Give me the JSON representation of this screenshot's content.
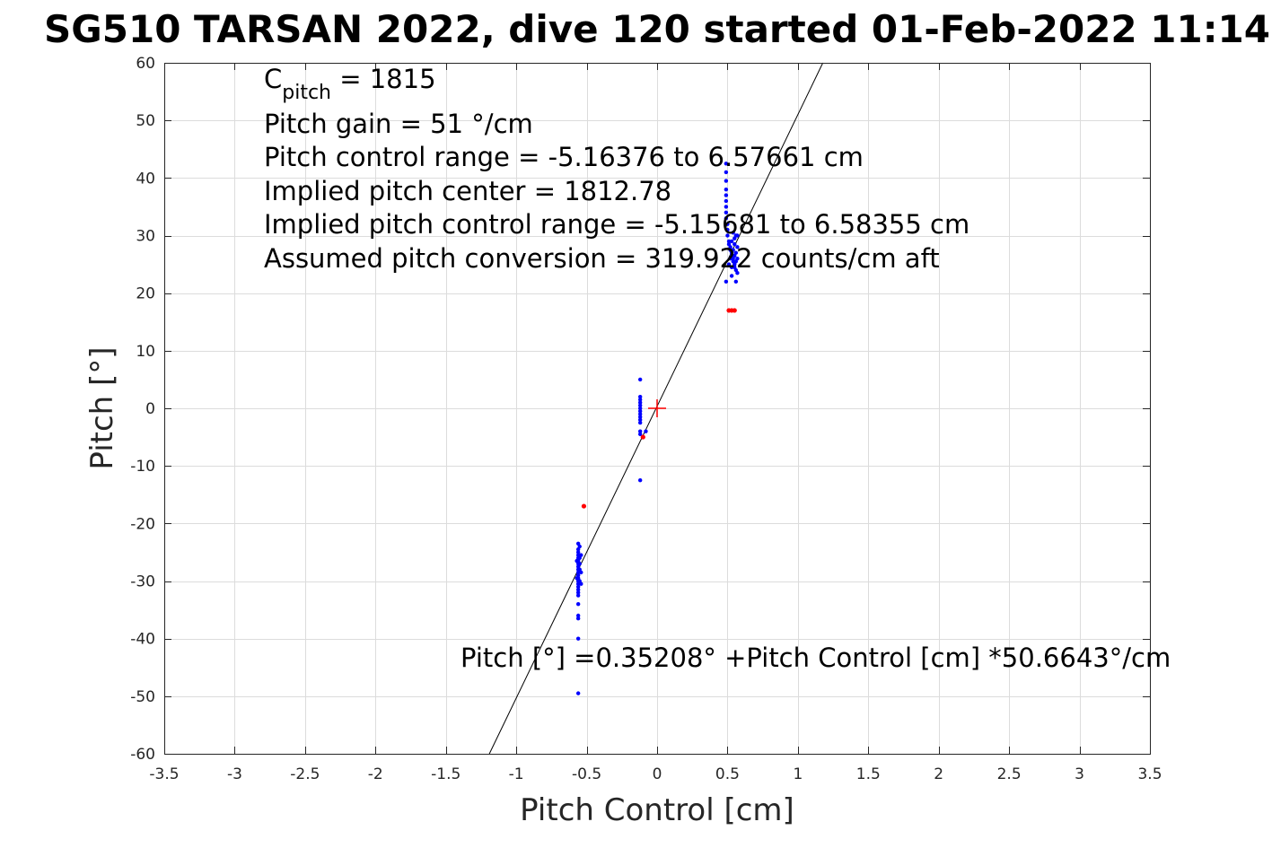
{
  "chart_data": {
    "type": "scatter",
    "title": "SG510 TARSAN 2022, dive 120 started 01-Feb-2022 11:14",
    "xlabel": "Pitch Control [cm]",
    "ylabel": "Pitch [°]",
    "xlim": [
      -3.5,
      3.5
    ],
    "ylim": [
      -60,
      60
    ],
    "xticks": [
      -3.5,
      -3,
      -2.5,
      -2,
      -1.5,
      -1,
      -0.5,
      0,
      0.5,
      1,
      1.5,
      2,
      2.5,
      3,
      3.5
    ],
    "yticks": [
      -60,
      -50,
      -40,
      -30,
      -20,
      -10,
      0,
      10,
      20,
      30,
      40,
      50,
      60
    ],
    "grid": true,
    "colors": {
      "series_used": "#0000ff",
      "series_excluded": "#ff0000",
      "fit": "#000000",
      "center_marker": "#ff0000"
    },
    "annotations": {
      "c_pitch_symbol": "C",
      "c_pitch_subscript": "pitch",
      "c_pitch_value": " = 1815",
      "lines": [
        "Pitch gain = 51 °/cm",
        "Pitch control range = -5.16376 to 6.57661 cm",
        "Implied pitch center = 1812.78",
        "Implied pitch control range = -5.15681 to 6.58355 cm",
        "Assumed pitch conversion = 319.922 counts/cm aft"
      ],
      "fit_equation": "Pitch [°] =0.35208° +Pitch Control [cm] *50.6643°/cm"
    },
    "fit": {
      "intercept": 0.35208,
      "slope": 50.6643
    },
    "center_marker": {
      "x": 0,
      "y": 0
    },
    "series": [
      {
        "style": "blue-dots",
        "points": [
          [
            0.49,
            42.5
          ],
          [
            0.49,
            41.0
          ],
          [
            0.49,
            39.5
          ],
          [
            0.49,
            38.0
          ],
          [
            0.49,
            37.0
          ],
          [
            0.49,
            36.0
          ],
          [
            0.49,
            35.0
          ],
          [
            0.49,
            34.0
          ],
          [
            0.49,
            33.0
          ],
          [
            0.5,
            32.0
          ],
          [
            0.5,
            31.0
          ],
          [
            0.5,
            30.0
          ],
          [
            0.51,
            29.0
          ],
          [
            0.51,
            28.5
          ],
          [
            0.52,
            28.0
          ],
          [
            0.52,
            27.5
          ],
          [
            0.53,
            27.0
          ],
          [
            0.53,
            26.5
          ],
          [
            0.54,
            26.0
          ],
          [
            0.54,
            25.5
          ],
          [
            0.55,
            25.0
          ],
          [
            0.55,
            24.5
          ],
          [
            0.56,
            24.0
          ],
          [
            0.56,
            27.0
          ],
          [
            0.57,
            28.0
          ],
          [
            0.57,
            26.0
          ],
          [
            0.55,
            29.5
          ],
          [
            0.54,
            30.5
          ],
          [
            0.56,
            30.0
          ],
          [
            0.53,
            29.0
          ],
          [
            0.52,
            26.0
          ],
          [
            0.51,
            25.0
          ],
          [
            0.55,
            28.5
          ],
          [
            0.56,
            25.5
          ],
          [
            0.54,
            27.5
          ],
          [
            0.57,
            30.0
          ],
          [
            0.55,
            26.5
          ],
          [
            0.53,
            24.5
          ],
          [
            0.49,
            22.0
          ],
          [
            0.56,
            22.0
          ],
          [
            0.57,
            23.5
          ],
          [
            0.53,
            23.0
          ],
          [
            -0.12,
            5.0
          ],
          [
            -0.12,
            2.0
          ],
          [
            -0.12,
            1.5
          ],
          [
            -0.12,
            1.0
          ],
          [
            -0.12,
            0.5
          ],
          [
            -0.12,
            0.0
          ],
          [
            -0.12,
            -0.5
          ],
          [
            -0.12,
            -1.0
          ],
          [
            -0.12,
            -1.5
          ],
          [
            -0.12,
            -2.0
          ],
          [
            -0.12,
            -2.5
          ],
          [
            -0.12,
            -4.0
          ],
          [
            -0.12,
            -4.5
          ],
          [
            -0.12,
            -12.5
          ],
          [
            -0.08,
            -4.0
          ],
          [
            -0.56,
            -23.5
          ],
          [
            -0.56,
            -24.5
          ],
          [
            -0.56,
            -25.0
          ],
          [
            -0.56,
            -25.5
          ],
          [
            -0.56,
            -26.0
          ],
          [
            -0.56,
            -26.5
          ],
          [
            -0.56,
            -27.0
          ],
          [
            -0.56,
            -27.5
          ],
          [
            -0.56,
            -28.0
          ],
          [
            -0.56,
            -28.5
          ],
          [
            -0.56,
            -29.0
          ],
          [
            -0.56,
            -29.5
          ],
          [
            -0.56,
            -30.0
          ],
          [
            -0.56,
            -30.5
          ],
          [
            -0.56,
            -31.0
          ],
          [
            -0.56,
            -31.5
          ],
          [
            -0.56,
            -32.0
          ],
          [
            -0.56,
            -32.5
          ],
          [
            -0.55,
            -24.0
          ],
          [
            -0.55,
            -26.0
          ],
          [
            -0.55,
            -28.0
          ],
          [
            -0.55,
            -30.0
          ],
          [
            -0.55,
            -27.0
          ],
          [
            -0.54,
            -25.5
          ],
          [
            -0.54,
            -28.5
          ],
          [
            -0.54,
            -30.5
          ],
          [
            -0.57,
            -26.5
          ],
          [
            -0.57,
            -29.5
          ],
          [
            -0.56,
            -34.0
          ],
          [
            -0.56,
            -36.0
          ],
          [
            -0.56,
            -36.5
          ],
          [
            -0.56,
            -40.0
          ],
          [
            -0.56,
            -49.5
          ]
        ]
      },
      {
        "style": "red-dots",
        "points": [
          [
            0.51,
            17.0
          ],
          [
            0.53,
            17.0
          ],
          [
            0.55,
            17.0
          ],
          [
            -0.52,
            -17.0
          ],
          [
            -0.1,
            -5.0
          ]
        ]
      }
    ]
  }
}
